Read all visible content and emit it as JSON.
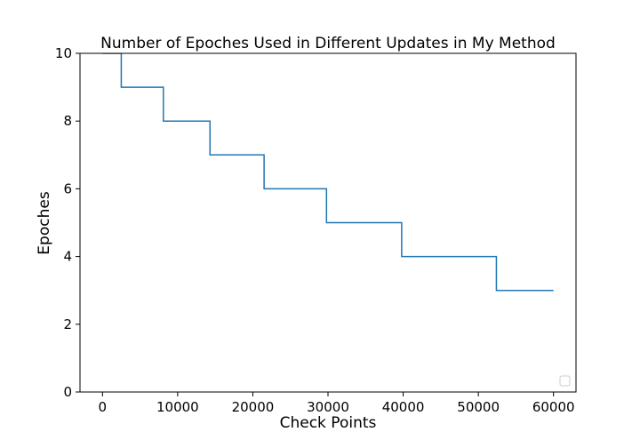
{
  "chart_data": {
    "type": "line",
    "title": "Number of Epoches Used in Different Updates in My Method",
    "xlabel": "Check Points",
    "ylabel": "Epoches",
    "xlim": [
      -2990,
      62990
    ],
    "ylim": [
      0,
      10
    ],
    "xticks": [
      0,
      10000,
      20000,
      30000,
      40000,
      50000,
      60000
    ],
    "xtick_labels": [
      "0",
      "10000",
      "20000",
      "30000",
      "40000",
      "50000",
      "60000"
    ],
    "yticks": [
      0,
      2,
      4,
      6,
      8,
      10
    ],
    "ytick_labels": [
      "0",
      "2",
      "4",
      "6",
      "8",
      "10"
    ],
    "grid": false,
    "legend": {
      "placement": "lower-right",
      "entries": []
    },
    "colors": {
      "series": "#1f77b4",
      "axes": "#000000",
      "background": "#ffffff"
    },
    "series": [
      {
        "step": "post",
        "x": [
          0,
          2500,
          8100,
          14300,
          21500,
          29800,
          39800,
          52400,
          60000
        ],
        "y": [
          10,
          9,
          8,
          7,
          6,
          5,
          4,
          3,
          3
        ]
      }
    ]
  }
}
